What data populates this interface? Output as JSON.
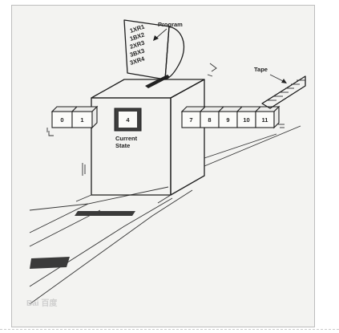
{
  "labels": {
    "program": "Program",
    "tape": "Tape",
    "current_state_line1": "Current",
    "current_state_line2": "State",
    "state_value": "4"
  },
  "program_lines": [
    "1XR1",
    "1BX2",
    "2XR3",
    "3BX3",
    "3XR4"
  ],
  "tape_left_cells": [
    "0",
    "1"
  ],
  "tape_right_cells": [
    "7",
    "8",
    "9",
    "10",
    "11"
  ],
  "watermark": "Bai 百度"
}
